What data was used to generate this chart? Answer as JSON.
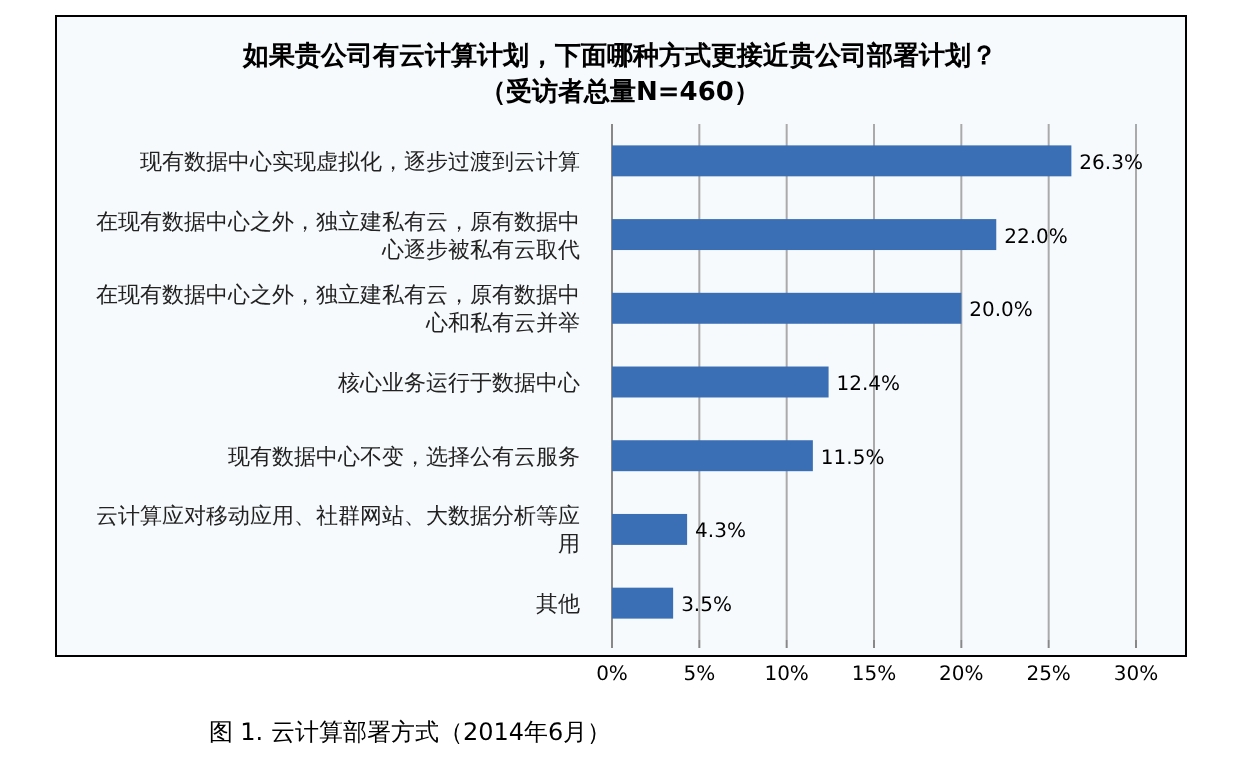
{
  "chart_data": {
    "type": "bar",
    "orientation": "horizontal",
    "title": "如果贵公司有云计算计划，下面哪种方式更接近贵公司部署计划？",
    "subtitle": "（受访者总量N=460）",
    "categories": [
      "现有数据中心实现虚拟化，逐步过渡到云计算",
      "在现有数据中心之外，独立建私有云，原有数据中心逐步被私有云取代",
      "在现有数据中心之外，独立建私有云，原有数据中心和私有云并举",
      "核心业务运行于数据中心",
      "现有数据中心不变，选择公有云服务",
      "云计算应对移动应用、社群网站、大数据分析等应用",
      "其他"
    ],
    "values": [
      26.3,
      22.0,
      20.0,
      12.4,
      11.5,
      4.3,
      3.5
    ],
    "value_labels": [
      "26.3%",
      "22.0%",
      "20.0%",
      "12.4%",
      "11.5%",
      "4.3%",
      "3.5%"
    ],
    "color": "#3a6fb5",
    "xlim": [
      0,
      30
    ],
    "xticks": [
      {
        "value": 0,
        "label": "0%"
      },
      {
        "value": 5,
        "label": "5%"
      },
      {
        "value": 10,
        "label": "10%"
      },
      {
        "value": 15,
        "label": "15%"
      },
      {
        "value": 20,
        "label": "20%"
      },
      {
        "value": 25,
        "label": "25%"
      },
      {
        "value": 30,
        "label": "30%"
      }
    ],
    "grid": "x",
    "annotations": [
      "图 1. 云计算部署方式（2014年6月）"
    ]
  }
}
